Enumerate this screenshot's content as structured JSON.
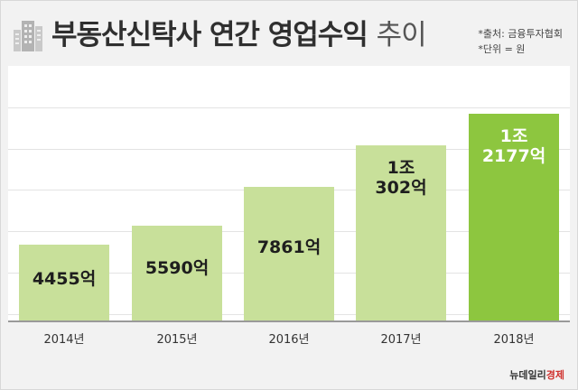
{
  "header": {
    "title_main": "부동산신탁사 연간 영업수익",
    "title_tail": "추이",
    "source_note": "*출처: 금융투자협회",
    "unit_note": "*단위 = 원",
    "icon": "building-icon"
  },
  "brand": {
    "name_a": "뉴데일리",
    "name_b": "경제"
  },
  "colors": {
    "bar": "#c8e09a",
    "bar_highlight": "#8dc63f",
    "background": "#f2f2f2"
  },
  "chart_data": {
    "type": "bar",
    "title": "부동산신탁사 연간 영업수익 추이",
    "unit": "원",
    "categories": [
      "2014년",
      "2015년",
      "2016년",
      "2017년",
      "2018년"
    ],
    "values": [
      445500000000,
      559000000000,
      786100000000,
      1030200000000,
      1217700000000
    ],
    "data_labels": [
      [
        "4455억"
      ],
      [
        "5590억"
      ],
      [
        "7861억"
      ],
      [
        "1조",
        "302억"
      ],
      [
        "1조",
        "2177억"
      ]
    ],
    "highlight_index": 4,
    "grid": true,
    "ylim": [
      0,
      1500000000000
    ]
  }
}
